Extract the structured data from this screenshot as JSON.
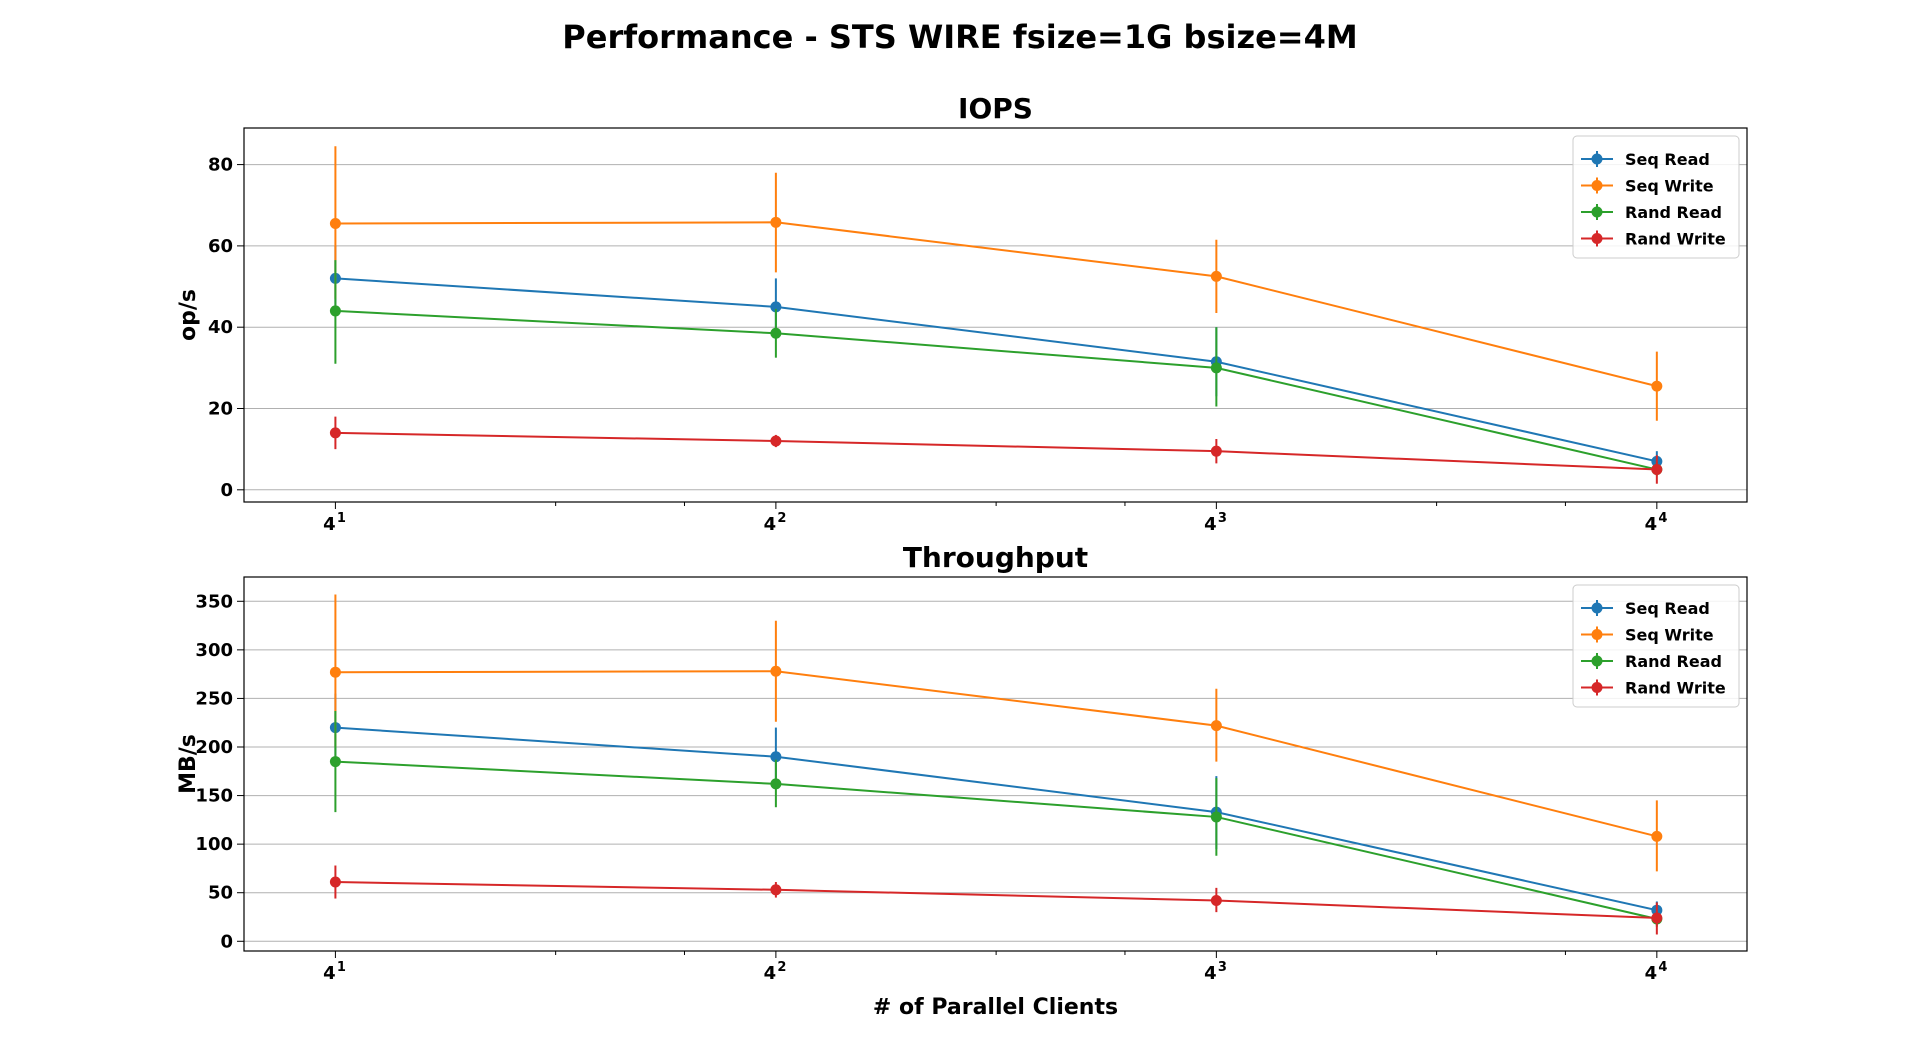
{
  "suptitle": "Performance - STS WIRE fsize=1G bsize=4M",
  "chart_data": [
    {
      "type": "line",
      "title": "IOPS",
      "xlabel": "",
      "ylabel": "op/s",
      "xscale": "log base 4",
      "x": [
        4,
        16,
        64,
        256
      ],
      "xtick_labels": [
        "4",
        "4",
        "4",
        "4"
      ],
      "xtick_exponents": [
        "1",
        "2",
        "3",
        "4"
      ],
      "xlim": [
        3.0,
        340
      ],
      "ylim": [
        -3,
        89
      ],
      "yticks": [
        0,
        20,
        40,
        60,
        80
      ],
      "grid": "horizontal",
      "legend": "top-right",
      "series": [
        {
          "name": "Seq Read",
          "color": "#1f77b4",
          "values": [
            52,
            45,
            31.5,
            7
          ],
          "err": [
            [
              44,
              60
            ],
            [
              38,
              52
            ],
            [
              23,
              40
            ],
            [
              5,
              9.5
            ]
          ]
        },
        {
          "name": "Seq Write",
          "color": "#ff7f0e",
          "values": [
            65.5,
            65.8,
            52.5,
            25.5
          ],
          "err": [
            [
              47,
              84.5
            ],
            [
              53.5,
              78
            ],
            [
              43.5,
              61.5
            ],
            [
              17,
              34
            ]
          ]
        },
        {
          "name": "Rand Read",
          "color": "#2ca02c",
          "values": [
            44,
            38.5,
            30,
            5
          ],
          "err": [
            [
              31,
              56.5
            ],
            [
              32.5,
              44.5
            ],
            [
              20.5,
              40
            ],
            [
              3.5,
              7
            ]
          ]
        },
        {
          "name": "Rand Write",
          "color": "#d62728",
          "values": [
            14,
            12,
            9.5,
            5
          ],
          "err": [
            [
              10,
              18
            ],
            [
              10.5,
              13.5
            ],
            [
              6.5,
              12.5
            ],
            [
              1.5,
              8.5
            ]
          ]
        }
      ]
    },
    {
      "type": "line",
      "title": "Throughput",
      "xlabel": "# of Parallel Clients",
      "ylabel": "MB/s",
      "xscale": "log base 4",
      "x": [
        4,
        16,
        64,
        256
      ],
      "xtick_labels": [
        "4",
        "4",
        "4",
        "4"
      ],
      "xtick_exponents": [
        "1",
        "2",
        "3",
        "4"
      ],
      "xlim": [
        3.0,
        340
      ],
      "ylim": [
        -10,
        375
      ],
      "yticks": [
        0,
        50,
        100,
        150,
        200,
        250,
        300,
        350
      ],
      "grid": "horizontal",
      "legend": "top-right",
      "series": [
        {
          "name": "Seq Read",
          "color": "#1f77b4",
          "values": [
            220,
            190,
            133,
            32
          ],
          "err": [
            [
              185,
              255
            ],
            [
              160,
              220
            ],
            [
              95,
              170
            ],
            [
              22,
              41
            ]
          ]
        },
        {
          "name": "Seq Write",
          "color": "#ff7f0e",
          "values": [
            277,
            278,
            222,
            108
          ],
          "err": [
            [
              200,
              357
            ],
            [
              226,
              330
            ],
            [
              185,
              260
            ],
            [
              72,
              145
            ]
          ]
        },
        {
          "name": "Rand Read",
          "color": "#2ca02c",
          "values": [
            185,
            162,
            128,
            23
          ],
          "err": [
            [
              133,
              237
            ],
            [
              138,
              187
            ],
            [
              88,
              168
            ],
            [
              15,
              30
            ]
          ]
        },
        {
          "name": "Rand Write",
          "color": "#d62728",
          "values": [
            61,
            53,
            42,
            24
          ],
          "err": [
            [
              44,
              78
            ],
            [
              45,
              61
            ],
            [
              30,
              55
            ],
            [
              7,
              40
            ]
          ]
        }
      ]
    }
  ]
}
